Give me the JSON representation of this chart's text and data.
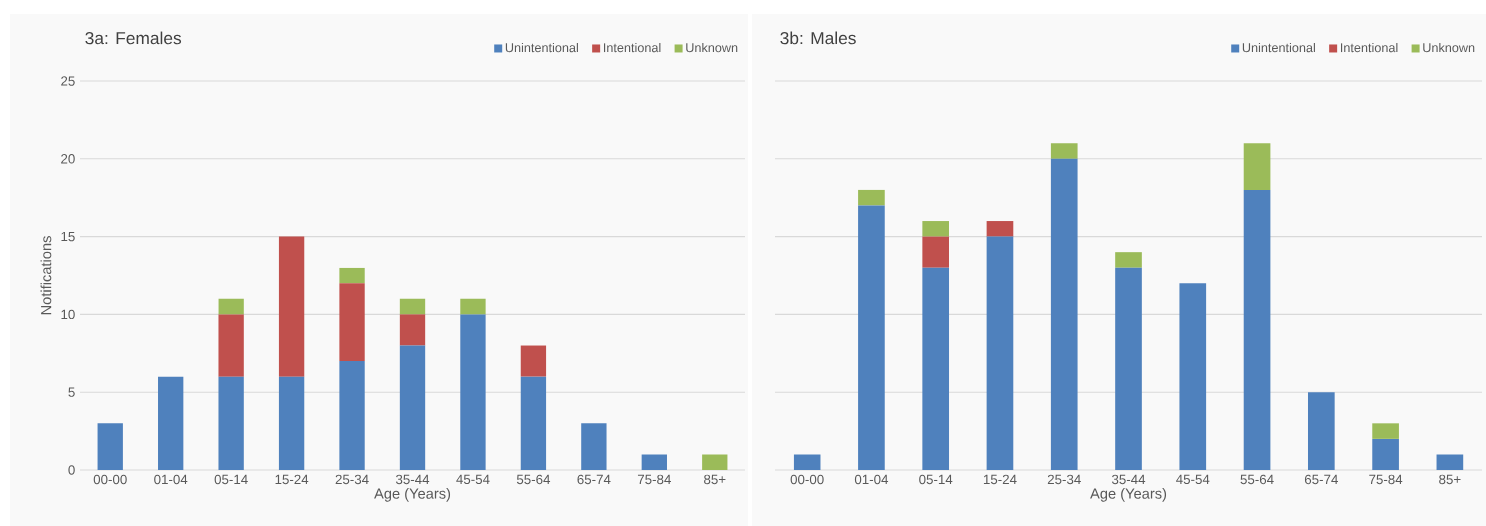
{
  "chart_data": [
    {
      "type": "bar",
      "title": "3a: Females",
      "xlabel": "Age (Years)",
      "ylabel": "Notifications",
      "stacked": true,
      "grid": "y",
      "legend": "top right",
      "categories": [
        "00-00",
        "01-04",
        "05-14",
        "15-24",
        "25-34",
        "35-44",
        "45-54",
        "55-64",
        "65-74",
        "75-84",
        "85+"
      ],
      "ylim": [
        0,
        25
      ],
      "yticks": [
        0,
        5,
        10,
        15,
        20,
        25
      ],
      "series": [
        {
          "name": "Unintentional",
          "color": "#4f81bd",
          "values": [
            3,
            6,
            6,
            6,
            7,
            8,
            10,
            6,
            3,
            1,
            0
          ]
        },
        {
          "name": "Intentional",
          "color": "#c0504d",
          "values": [
            0,
            0,
            4,
            9,
            5,
            2,
            0,
            2,
            0,
            0,
            0
          ]
        },
        {
          "name": "Unknown",
          "color": "#9bbb59",
          "values": [
            0,
            0,
            1,
            0,
            1,
            1,
            1,
            0,
            0,
            0,
            1
          ]
        }
      ]
    },
    {
      "type": "bar",
      "title": "3b: Males",
      "xlabel": "Age (Years)",
      "stacked": true,
      "grid": "y",
      "legend": "top right",
      "tick_labels": "x",
      "categories": [
        "00-00",
        "01-04",
        "05-14",
        "15-24",
        "25-34",
        "35-44",
        "45-54",
        "55-64",
        "65-74",
        "75-84",
        "85+"
      ],
      "ylim": [
        0,
        25
      ],
      "yticks": [
        0,
        5,
        10,
        15,
        20,
        25
      ],
      "series": [
        {
          "name": "Unintentional",
          "color": "#4f81bd",
          "values": [
            1,
            17,
            13,
            15,
            20,
            13,
            12,
            18,
            5,
            2,
            1
          ]
        },
        {
          "name": "Intentional",
          "color": "#c0504d",
          "values": [
            0,
            0,
            2,
            1,
            0,
            0,
            0,
            0,
            0,
            0,
            0
          ]
        },
        {
          "name": "Unknown",
          "color": "#9bbb59",
          "values": [
            0,
            1,
            1,
            0,
            1,
            1,
            0,
            3,
            0,
            1,
            0
          ]
        }
      ]
    }
  ]
}
